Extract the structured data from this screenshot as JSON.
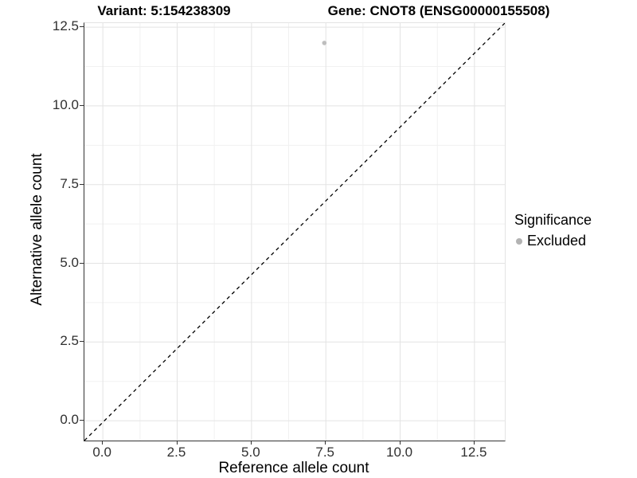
{
  "chart_data": {
    "type": "scatter",
    "title_left": "Variant: 5:154238309",
    "title_right": "Gene: CNOT8 (ENSG00000155508)",
    "xlabel": "Reference allele count",
    "ylabel": "Alternative allele count",
    "x_ticks": {
      "values": [
        0,
        2.5,
        5,
        7.5,
        10,
        12.5
      ],
      "labels": [
        "0.0",
        "2.5",
        "5.0",
        "7.5",
        "10.0",
        "12.5"
      ]
    },
    "y_ticks": {
      "values": [
        0,
        2.5,
        5,
        7.5,
        10,
        12.5
      ],
      "labels": [
        "0.0",
        "2.5",
        "5.0",
        "7.5",
        "10.0",
        "12.5"
      ]
    },
    "x_minor": [
      1.25,
      3.75,
      6.25,
      8.75,
      11.25
    ],
    "y_minor": [
      1.25,
      3.75,
      6.25,
      8.75,
      11.25
    ],
    "xlim": [
      -0.62,
      13.52
    ],
    "ylim": [
      -0.63,
      12.63
    ],
    "grid": true,
    "reference_line": {
      "style": "dashed",
      "color": "#000000",
      "description": "identity diagonal from bottom-left to top-right panel corner (y = x)"
    },
    "series": [
      {
        "name": "Excluded",
        "color": "#bebebe",
        "marker": "circle",
        "marker_radius_px": 2.8,
        "points": [
          {
            "x": 7.45,
            "y": 12.0
          }
        ]
      }
    ],
    "legend": {
      "title": "Significance",
      "position": "right",
      "items": [
        {
          "label": "Excluded",
          "color": "#b3b3b3",
          "marker": "circle"
        }
      ]
    }
  },
  "colors": {
    "background": "#ffffff",
    "axis_line": "#333333",
    "axis_text": "#303030",
    "title_text": "#000000",
    "grid_major": "#e3e3e3",
    "grid_minor": "#f1f1f1",
    "point": "#bebebe",
    "legend_key": "#b3b3b3"
  }
}
